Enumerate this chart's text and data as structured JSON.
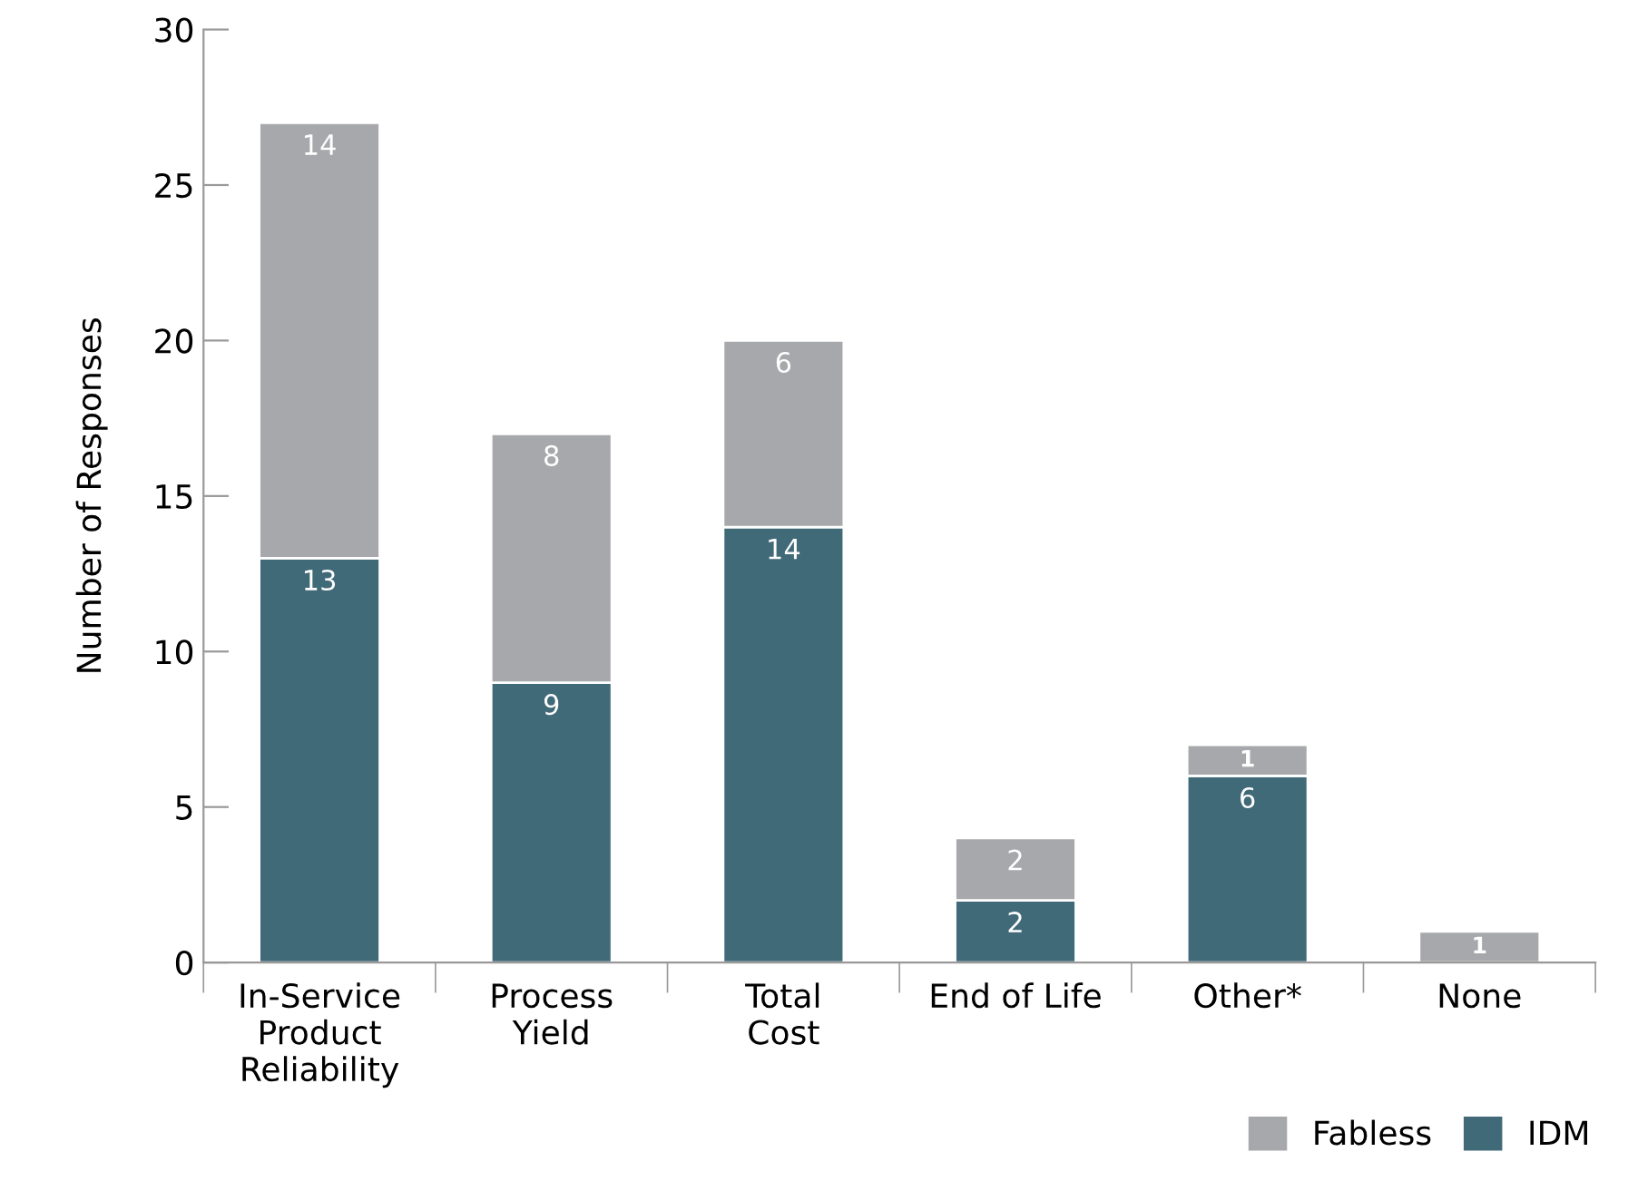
{
  "chart_data": {
    "type": "bar",
    "stacked": true,
    "ylabel": "Number of Responses",
    "categories": [
      "In-Service\nProduct\nReliability",
      "Process\nYield",
      "Total\nCost",
      "End of Life",
      "Other*",
      "None"
    ],
    "series": [
      {
        "name": "IDM",
        "color": "#416a78",
        "values": [
          13,
          9,
          14,
          2,
          6,
          0
        ],
        "value_labels": [
          "13",
          "9",
          "14",
          "2",
          "6",
          null
        ]
      },
      {
        "name": "Fabless",
        "color": "#a7a8ab",
        "values": [
          14,
          8,
          6,
          2,
          1,
          1
        ],
        "value_labels": [
          "14",
          "8",
          "6",
          "2",
          "1",
          "1"
        ]
      }
    ],
    "ylim": [
      0,
      30
    ],
    "yticks": [
      0,
      5,
      10,
      15,
      20,
      25,
      30
    ],
    "grid": false,
    "legend": "bottom right"
  }
}
